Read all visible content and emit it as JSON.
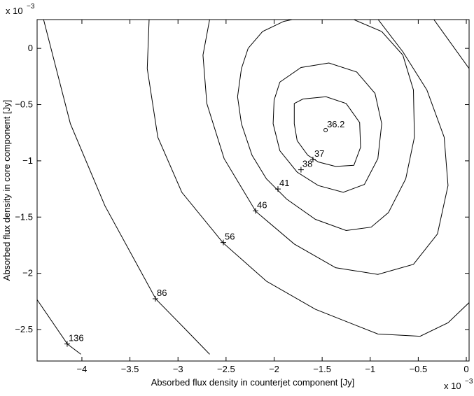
{
  "chart_data": {
    "type": "contour",
    "xlabel": "Absorbed flux density in counterjet component  [Jy]",
    "ylabel": "Absorbed flux density in core component  [Jy]",
    "x_scale": {
      "base": "x 10",
      "exponent": "−3"
    },
    "y_scale": {
      "base": "x 10",
      "exponent": "−3"
    },
    "xlim": [
      -4.466,
      0.029
    ],
    "ylim": [
      -2.78,
      0.256
    ],
    "xticks": [
      {
        "value": -4,
        "label": "−4"
      },
      {
        "value": -3.5,
        "label": "−3.5"
      },
      {
        "value": -3,
        "label": "−3"
      },
      {
        "value": -2.5,
        "label": "−2.5"
      },
      {
        "value": -2,
        "label": "−2"
      },
      {
        "value": -1.5,
        "label": "−1.5"
      },
      {
        "value": -1,
        "label": "−1"
      },
      {
        "value": -0.5,
        "label": "−0.5"
      },
      0
    ],
    "yticks": [
      0,
      {
        "value": -0.5,
        "label": "−0.5"
      },
      {
        "value": -1,
        "label": "−1"
      },
      {
        "value": -1.5,
        "label": "−1.5"
      },
      {
        "value": -2,
        "label": "−2"
      },
      {
        "value": -2.5,
        "label": "−2.5"
      }
    ],
    "grid": false,
    "color": "#000000",
    "contours": [
      {
        "closed": true,
        "x": [
          -1.79,
          -1.7,
          -1.46,
          -1.25,
          -1.11,
          -1.1,
          -1.17,
          -1.36,
          -1.54,
          -1.65,
          -1.76,
          -1.79
        ],
        "y": [
          -0.49,
          -0.45,
          -0.43,
          -0.49,
          -0.66,
          -0.88,
          -1.04,
          -1.05,
          -1.01,
          -0.95,
          -0.82,
          -0.67
        ]
      },
      {
        "closed": true,
        "x": [
          -1.94,
          -1.72,
          -1.43,
          -1.14,
          -0.95,
          -0.88,
          -0.92,
          -1.06,
          -1.28,
          -1.54,
          -1.76,
          -1.94,
          -2.01,
          -2.0
        ],
        "y": [
          -0.3,
          -0.17,
          -0.13,
          -0.21,
          -0.4,
          -0.67,
          -0.98,
          -1.21,
          -1.28,
          -1.22,
          -1.1,
          -0.91,
          -0.67,
          -0.46
        ]
      },
      {
        "closed": true,
        "x": [
          -2.34,
          -2.27,
          -2.12,
          -1.9,
          -1.57,
          -1.21,
          -0.88,
          -0.66,
          -0.55,
          -0.54,
          -0.63,
          -0.81,
          -0.99,
          -1.25,
          -1.57,
          -1.87,
          -2.08,
          -2.23,
          -2.34,
          -2.38
        ],
        "y": [
          -0.18,
          0,
          0.15,
          0.24,
          0.3,
          0.27,
          0.15,
          -0.06,
          -0.37,
          -0.79,
          -1.16,
          -1.46,
          -1.59,
          -1.62,
          -1.52,
          -1.34,
          -1.16,
          -0.95,
          -0.67,
          -0.43
        ]
      },
      {
        "closed": false,
        "x": [
          -2.67,
          -2.74,
          -2.7,
          -2.52,
          -2.19,
          -1.79,
          -1.36,
          -0.92,
          -0.55,
          -0.3,
          -0.19,
          -0.23,
          -0.41,
          -0.66,
          -0.92
        ],
        "y": [
          0.26,
          -0.06,
          -0.49,
          -0.98,
          -1.45,
          -1.74,
          -1.95,
          -2.01,
          -1.92,
          -1.65,
          -1.22,
          -0.79,
          -0.37,
          -0.03,
          0.26
        ]
      },
      {
        "closed": false,
        "x": [
          -3.3,
          -3.32,
          -3.21,
          -2.96,
          -2.53,
          -2.08,
          -1.57,
          -0.92,
          -0.48,
          -0.19,
          0.03,
          null,
          -0.34,
          0.03
        ],
        "y": [
          0.26,
          -0.18,
          -0.79,
          -1.28,
          -1.73,
          -2.07,
          -2.32,
          -2.54,
          -2.56,
          -2.44,
          -2.26,
          null,
          0.26,
          -0.18
        ]
      },
      {
        "closed": false,
        "x": [
          -4.4,
          -4.12,
          -3.76,
          -3.23,
          -2.92,
          -2.67
        ],
        "y": [
          0.26,
          -0.67,
          -1.4,
          -2.23,
          -2.5,
          -2.72
        ]
      },
      {
        "closed": false,
        "x": [
          -4.47,
          -4.15,
          -4.01
        ],
        "y": [
          -2.23,
          -2.63,
          -2.72
        ]
      }
    ],
    "labels": [
      {
        "x": -1.464,
        "y": -0.726,
        "value": 36.2,
        "marker": "o"
      },
      {
        "x": -1.596,
        "y": -0.988,
        "value": 37,
        "marker": "+"
      },
      {
        "x": -1.72,
        "y": -1.079,
        "value": 38,
        "marker": "+"
      },
      {
        "x": -1.96,
        "y": -1.25,
        "value": 41,
        "marker": "+"
      },
      {
        "x": -2.193,
        "y": -1.445,
        "value": 46,
        "marker": "+"
      },
      {
        "x": -2.528,
        "y": -1.726,
        "value": 56,
        "marker": "+"
      },
      {
        "x": -3.235,
        "y": -2.226,
        "value": 86,
        "marker": "+"
      },
      {
        "x": -4.153,
        "y": -2.628,
        "value": 136,
        "marker": "+"
      }
    ]
  }
}
